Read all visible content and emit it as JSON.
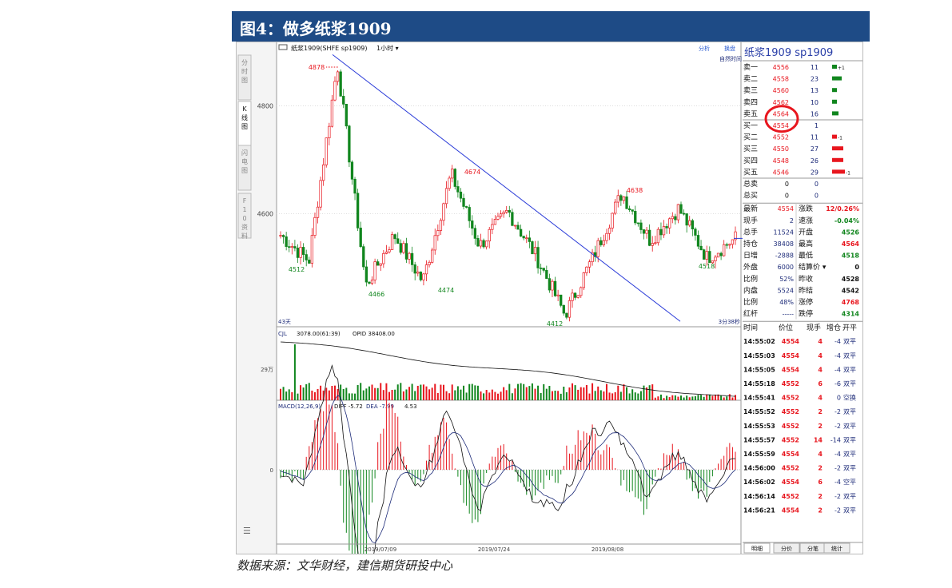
{
  "page_title": "图4：做多纸浆1909",
  "source_note": "数据来源：文华财经，建信期货研投中心",
  "colors": {
    "title_bg": "#1e4b86",
    "up": "#e8161e",
    "down": "#11861e",
    "trend": "#2a3bd8",
    "ma": "#1c2a78"
  },
  "chart": {
    "instrument_label": "纸浆1909(SHFE sp1909)",
    "period": "1小时",
    "side_tabs": [
      "分时图",
      "K线图",
      "闪电图",
      "F10资料"
    ],
    "toolbar": {
      "analysis": "分析",
      "switch": "换盘",
      "mode": "自然时间"
    },
    "price_axis": [
      "4800",
      "4600"
    ],
    "annotations": [
      "4878",
      "4512",
      "4466",
      "4674",
      "4474",
      "4412",
      "4638",
      "4518"
    ],
    "corner_left": "43天",
    "corner_right": "3分38秒",
    "volume_header": {
      "name": "CJL",
      "value": "3078.00(61:39)",
      "opi": "OPID 38408.00"
    },
    "volume_axis": "29万",
    "macd_header": {
      "name": "MACD(12,26,9)",
      "diff": "DIFF -5.72",
      "dea": "DEA -7.99",
      "macd": "4.53"
    },
    "macd_axis": "0",
    "dates": [
      "2019/07/09",
      "2019/07/24",
      "2019/08/08"
    ]
  },
  "quote": {
    "title": "纸浆1909  sp1909",
    "asks": [
      {
        "label": "卖五",
        "price": "4564",
        "vol": "16",
        "chg": "",
        "bar": 2
      },
      {
        "label": "卖四",
        "price": "4562",
        "vol": "10",
        "chg": "",
        "bar": 1.5
      },
      {
        "label": "卖三",
        "price": "4560",
        "vol": "13",
        "chg": "",
        "bar": 1.5
      },
      {
        "label": "卖二",
        "price": "4558",
        "vol": "23",
        "chg": "",
        "bar": 3
      },
      {
        "label": "卖一",
        "price": "4556",
        "vol": "11",
        "chg": "+1",
        "bar": 1.5
      }
    ],
    "bids": [
      {
        "label": "买一",
        "price": "4554",
        "vol": "1",
        "chg": "",
        "bar": 0
      },
      {
        "label": "买二",
        "price": "4552",
        "vol": "11",
        "chg": "-1",
        "bar": 1.5
      },
      {
        "label": "买三",
        "price": "4550",
        "vol": "27",
        "chg": "",
        "bar": 3.5
      },
      {
        "label": "买四",
        "price": "4548",
        "vol": "26",
        "chg": "",
        "bar": 3.5
      },
      {
        "label": "买五",
        "price": "4546",
        "vol": "29",
        "chg": "-1",
        "bar": 4
      }
    ],
    "totals": [
      {
        "label": "总卖",
        "v1": "0",
        "v2": "0"
      },
      {
        "label": "总买",
        "v1": "0",
        "v2": "0"
      }
    ],
    "stats": [
      {
        "l1": "最新",
        "v1": "4554",
        "c1": "#e8161e",
        "l2": "涨跌",
        "v2": "12/0.26%",
        "c2": "#e8161e"
      },
      {
        "l1": "现手",
        "v1": "2",
        "c1": "#1c2a78",
        "l2": "速涨",
        "v2": "-0.04%",
        "c2": "#11861e"
      },
      {
        "l1": "总手",
        "v1": "11524",
        "c1": "#1c2a78",
        "l2": "开盘",
        "v2": "4526",
        "c2": "#11861e"
      },
      {
        "l1": "持仓",
        "v1": "38408",
        "c1": "#1c2a78",
        "l2": "最高",
        "v2": "4564",
        "c2": "#e8161e"
      },
      {
        "l1": "日增",
        "v1": "-2888",
        "c1": "#1c2a78",
        "l2": "最低",
        "v2": "4518",
        "c2": "#11861e"
      },
      {
        "l1": "外盘",
        "v1": "6000",
        "c1": "#1c2a78",
        "l2": "结算价",
        "v2": "0",
        "c2": "#111111"
      },
      {
        "l1": "比例",
        "v1": "52%",
        "c1": "#1c2a78",
        "l2": "昨收",
        "v2": "4528",
        "c2": "#111111"
      },
      {
        "l1": "内盘",
        "v1": "5524",
        "c1": "#1c2a78",
        "l2": "昨结",
        "v2": "4542",
        "c2": "#111111"
      },
      {
        "l1": "比例",
        "v1": "48%",
        "c1": "#1c2a78",
        "l2": "涨停",
        "v2": "4768",
        "c2": "#e8161e"
      },
      {
        "l1": "红杆",
        "v1": "-----",
        "c1": "#1c2a78",
        "l2": "跌停",
        "v2": "4314",
        "c2": "#11861e"
      }
    ],
    "tick_header": [
      "时间",
      "价位",
      "现手",
      "增仓",
      "开平"
    ],
    "ticks": [
      {
        "time": "14:55:02",
        "price": "4554",
        "qty": "4",
        "oi": "-4",
        "type": "双平"
      },
      {
        "time": "14:55:03",
        "price": "4554",
        "qty": "4",
        "oi": "-4",
        "type": "双平"
      },
      {
        "time": "14:55:05",
        "price": "4554",
        "qty": "4",
        "oi": "-4",
        "type": "双平"
      },
      {
        "time": "14:55:18",
        "price": "4552",
        "qty": "6",
        "oi": "-6",
        "type": "双平"
      },
      {
        "time": "14:55:41",
        "price": "4552",
        "qty": "4",
        "oi": "0",
        "type": "空换"
      },
      {
        "time": "14:55:52",
        "price": "4552",
        "qty": "2",
        "oi": "-2",
        "type": "双平"
      },
      {
        "time": "14:55:53",
        "price": "4552",
        "qty": "2",
        "oi": "-2",
        "type": "双平"
      },
      {
        "time": "14:55:57",
        "price": "4552",
        "qty": "14",
        "oi": "-14",
        "type": "双平"
      },
      {
        "time": "14:55:59",
        "price": "4554",
        "qty": "4",
        "oi": "-4",
        "type": "双平"
      },
      {
        "time": "14:56:00",
        "price": "4552",
        "qty": "2",
        "oi": "-2",
        "type": "双平"
      },
      {
        "time": "14:56:02",
        "price": "4554",
        "qty": "6",
        "oi": "-4",
        "type": "空平"
      },
      {
        "time": "14:56:14",
        "price": "4552",
        "qty": "2",
        "oi": "-2",
        "type": "双平"
      },
      {
        "time": "14:56:21",
        "price": "4554",
        "qty": "2",
        "oi": "-2",
        "type": "双平"
      }
    ],
    "bottom_tabs": [
      "明细",
      "分价",
      "分笔",
      "统计"
    ]
  },
  "chart_data": {
    "type": "candlestick",
    "title": "纸浆1909(SHFE sp1909)",
    "period": "1小时",
    "ylim": [
      4390,
      4900
    ],
    "x_dates": [
      "2019/07/09",
      "2019/07/24",
      "2019/08/08"
    ],
    "pivots": [
      {
        "label": "start",
        "price": 4560
      },
      {
        "label": "low",
        "price": 4512
      },
      {
        "label": "high",
        "price": 4878
      },
      {
        "label": "low",
        "price": 4466
      },
      {
        "label": "",
        "price": 4560
      },
      {
        "label": "low",
        "price": 4474
      },
      {
        "label": "high",
        "price": 4674
      },
      {
        "label": "",
        "price": 4540
      },
      {
        "label": "",
        "price": 4605
      },
      {
        "label": "",
        "price": 4520
      },
      {
        "label": "low",
        "price": 4412
      },
      {
        "label": "",
        "price": 4520
      },
      {
        "label": "high",
        "price": 4638
      },
      {
        "label": "",
        "price": 4550
      },
      {
        "label": "",
        "price": 4610
      },
      {
        "label": "low",
        "price": 4518
      },
      {
        "label": "last",
        "price": 4554
      }
    ],
    "trendline": [
      {
        "from_price": 4895,
        "to_price": 4400
      }
    ],
    "volume_axis_label": "29万",
    "macd": {
      "diff": -5.72,
      "dea": -7.99,
      "macd": 4.53
    }
  }
}
